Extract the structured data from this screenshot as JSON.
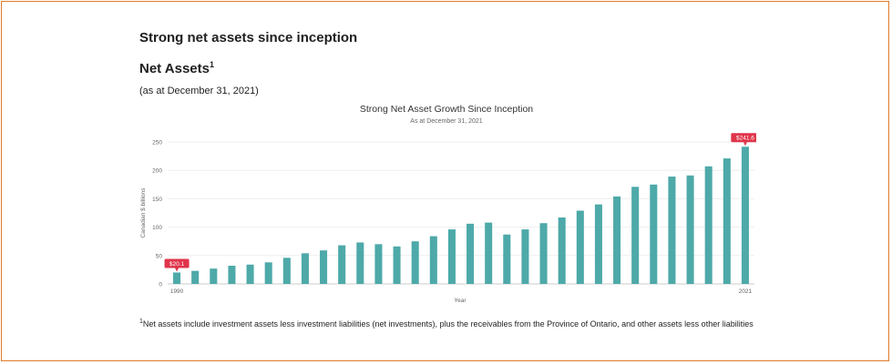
{
  "page": {
    "heading": "Strong net assets since inception",
    "subheading": "Net Assets",
    "subheading_footnote_mark": "1",
    "as_at": "(as at December 31, 2021)",
    "footnote_mark": "1",
    "footnote": "Net assets include investment assets less investment liabilities (net investments), plus the receivables from the Province of Ontario, and other assets less other liabilities"
  },
  "colors": {
    "bar": "#4ea9a9",
    "callout": "#e0344a",
    "frame": "#e07b2a",
    "grid": "#eeeeee"
  },
  "chart_data": {
    "type": "bar",
    "title": "Strong Net Asset Growth Since Inception",
    "subtitle": "As at December 31, 2021",
    "xlabel": "Year",
    "ylabel": "Canadian $ billions",
    "ylim": [
      0,
      250
    ],
    "yticks": [
      0,
      50,
      100,
      150,
      200,
      250
    ],
    "grid": true,
    "x_tick_labels": [
      "1990",
      "2021"
    ],
    "categories": [
      "1990",
      "1991",
      "1992",
      "1993",
      "1994",
      "1995",
      "1996",
      "1997",
      "1998",
      "1999",
      "2000",
      "2001",
      "2002",
      "2003",
      "2004",
      "2005",
      "2006",
      "2007",
      "2008",
      "2009",
      "2010",
      "2011",
      "2012",
      "2013",
      "2014",
      "2015",
      "2016",
      "2017",
      "2018",
      "2019",
      "2020",
      "2021"
    ],
    "values": [
      20.1,
      23,
      27,
      32,
      34,
      38,
      46,
      54,
      59,
      68,
      73,
      70,
      66,
      75,
      84,
      96,
      106,
      108,
      87,
      96,
      107,
      117,
      129,
      140,
      154,
      171,
      175,
      189,
      191,
      207,
      221,
      241.6
    ],
    "annotations": [
      {
        "category": "1990",
        "label": "$20.1"
      },
      {
        "category": "2021",
        "label": "$241.6"
      }
    ]
  }
}
